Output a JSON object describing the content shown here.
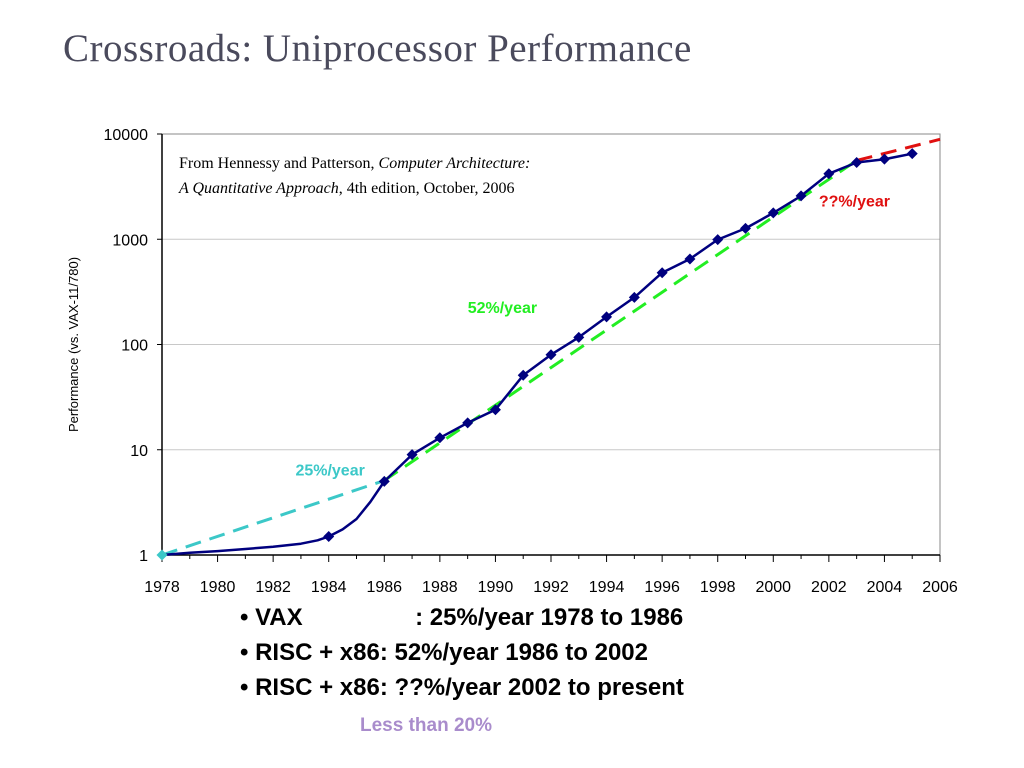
{
  "slide": {
    "title": "Crossroads: Uniprocessor Performance",
    "source_note": {
      "prefix": "From Hennessy and Patterson, ",
      "book": "Computer Architecture: A Quantitative Approach",
      "suffix": ", 4th edition, October, 2006"
    },
    "bullets": [
      {
        "label": "VAX",
        "text": ": 25%/year 1978 to 1986"
      },
      {
        "label": "RISC + x86",
        "text": ": 52%/year 1986 to 2002"
      },
      {
        "label": "RISC + x86",
        "text": ": ??%/year 2002 to present"
      }
    ],
    "footnote": "Less than 20%",
    "footnote_color": "#a98ccc"
  },
  "chart_data": {
    "type": "line",
    "title": "",
    "xlabel": "",
    "ylabel": "Performance (vs. VAX-11/780)",
    "y_scale": "log",
    "xlim": [
      1978,
      2006
    ],
    "ylim": [
      1,
      10000
    ],
    "x_ticks": [
      "1978",
      "1980",
      "1982",
      "1984",
      "1986",
      "1988",
      "1990",
      "1992",
      "1994",
      "1996",
      "1998",
      "2000",
      "2002",
      "2004",
      "2006"
    ],
    "y_ticks": [
      "1",
      "10",
      "100",
      "1000",
      "10000"
    ],
    "grid": "horizontal",
    "series": [
      {
        "color": "#00007f",
        "curve": [
          [
            1978,
            1
          ],
          [
            1979,
            1.05
          ],
          [
            1980,
            1.09
          ],
          [
            1981,
            1.14
          ],
          [
            1982,
            1.2
          ],
          [
            1983,
            1.28
          ],
          [
            1983.6,
            1.38
          ],
          [
            1984,
            1.5
          ],
          [
            1984.5,
            1.75
          ],
          [
            1985,
            2.2
          ],
          [
            1985.5,
            3.2
          ],
          [
            1986,
            5
          ],
          [
            1987,
            9
          ],
          [
            1988,
            13
          ],
          [
            1989,
            18
          ],
          [
            1990,
            24
          ],
          [
            1991,
            51
          ],
          [
            1992,
            80
          ],
          [
            1993,
            117
          ],
          [
            1994,
            183
          ],
          [
            1995,
            280
          ],
          [
            1996,
            481
          ],
          [
            1997,
            649
          ],
          [
            1998,
            993
          ],
          [
            1999,
            1267
          ],
          [
            2000,
            1779
          ],
          [
            2001,
            2584
          ],
          [
            2002,
            4195
          ],
          [
            2003,
            5364
          ],
          [
            2004,
            5764
          ],
          [
            2005,
            6505
          ]
        ],
        "markers": [
          [
            1978,
            1
          ],
          [
            1984,
            1.5
          ],
          [
            1986,
            5
          ],
          [
            1987,
            9
          ],
          [
            1988,
            13
          ],
          [
            1989,
            18
          ],
          [
            1990,
            24
          ],
          [
            1991,
            51
          ],
          [
            1992,
            80
          ],
          [
            1993,
            117
          ],
          [
            1994,
            183
          ],
          [
            1995,
            280
          ],
          [
            1996,
            481
          ],
          [
            1997,
            649
          ],
          [
            1998,
            993
          ],
          [
            1999,
            1267
          ],
          [
            2000,
            1779
          ],
          [
            2001,
            2584
          ],
          [
            2002,
            4195
          ],
          [
            2003,
            5364
          ],
          [
            2004,
            5764
          ],
          [
            2005,
            6505
          ]
        ]
      }
    ],
    "trend_lines": [
      {
        "label": "25%/year",
        "color": "#3cc8c8",
        "from": [
          1978,
          1
        ],
        "to": [
          1986,
          5.1
        ]
      },
      {
        "label": "52%/year",
        "color": "#22ee22",
        "from": [
          1986,
          5.1
        ],
        "to": [
          2003,
          5600
        ]
      },
      {
        "label": "??%/year",
        "color": "#e01010",
        "from": [
          2003,
          5600
        ],
        "to": [
          2006,
          8900
        ]
      }
    ]
  }
}
